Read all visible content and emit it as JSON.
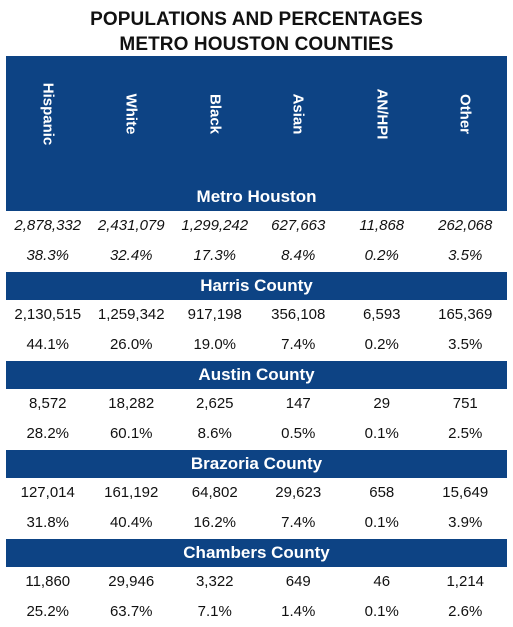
{
  "title": {
    "line1": "POPULATIONS AND PERCENTAGES",
    "line2": "METRO HOUSTON COUNTIES"
  },
  "columns": [
    "Hispanic",
    "White",
    "Black",
    "Asian",
    "AN/HPI",
    "Other"
  ],
  "sections": [
    {
      "name": "Metro Houston",
      "counts": [
        "2,878,332",
        "2,431,079",
        "1,299,242",
        "627,663",
        "11,868",
        "262,068"
      ],
      "percents": [
        "38.3%",
        "32.4%",
        "17.3%",
        "8.4%",
        "0.2%",
        "3.5%"
      ]
    },
    {
      "name": "Harris County",
      "counts": [
        "2,130,515",
        "1,259,342",
        "917,198",
        "356,108",
        "6,593",
        "165,369"
      ],
      "percents": [
        "44.1%",
        "26.0%",
        "19.0%",
        "7.4%",
        "0.2%",
        "3.5%"
      ]
    },
    {
      "name": "Austin County",
      "counts": [
        "8,572",
        "18,282",
        "2,625",
        "147",
        "29",
        "751"
      ],
      "percents": [
        "28.2%",
        "60.1%",
        "8.6%",
        "0.5%",
        "0.1%",
        "2.5%"
      ]
    },
    {
      "name": "Brazoria County",
      "counts": [
        "127,014",
        "161,192",
        "64,802",
        "29,623",
        "658",
        "15,649"
      ],
      "percents": [
        "31.8%",
        "40.4%",
        "16.2%",
        "7.4%",
        "0.1%",
        "3.9%"
      ]
    },
    {
      "name": "Chambers County",
      "counts": [
        "11,860",
        "29,946",
        "3,322",
        "649",
        "46",
        "1,214"
      ],
      "percents": [
        "25.2%",
        "63.7%",
        "7.1%",
        "1.4%",
        "0.1%",
        "2.6%"
      ]
    }
  ],
  "colors": {
    "header_bg": "#0d4384",
    "header_text": "#ffffff"
  }
}
